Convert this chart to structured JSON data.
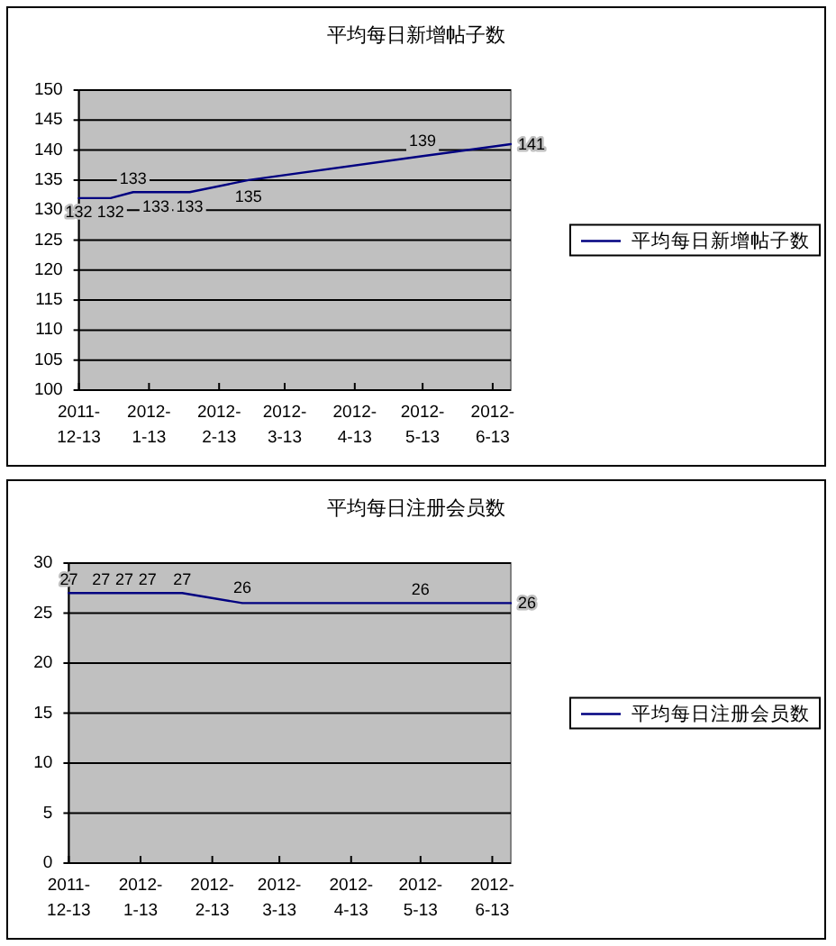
{
  "chart_data": [
    {
      "type": "line",
      "title": "平均每日新增帖子数",
      "x": [
        "2011-12-13",
        "2011-12-27",
        "2012-01-06",
        "2012-01-16",
        "2012-01-31",
        "2012-02-26",
        "2012-05-13",
        "2012-06-21"
      ],
      "series": [
        {
          "name": "平均每日新增帖子数",
          "color": "#000080",
          "values": [
            132,
            132,
            133,
            133,
            133,
            135,
            139,
            141
          ]
        }
      ],
      "xlim": [
        "2011-12-13",
        "2012-06-21"
      ],
      "xticks": [
        "2011-12-13",
        {
          "value": "2012-01-13",
          "label": "2012-1-13"
        },
        {
          "value": "2012-02-13",
          "label": "2012-2-13"
        },
        {
          "value": "2012-03-13",
          "label": "2012-3-13"
        },
        {
          "value": "2012-04-13",
          "label": "2012-4-13"
        },
        {
          "value": "2012-05-13",
          "label": "2012-5-13"
        },
        {
          "value": "2012-06-13",
          "label": "2012-6-13"
        }
      ],
      "ylim": [
        100,
        150
      ],
      "yticks": [
        100,
        105,
        110,
        115,
        120,
        125,
        130,
        135,
        140,
        145,
        150
      ],
      "grid": "y",
      "legend": "right",
      "data_labels": true
    },
    {
      "type": "line",
      "title": "平均每日注册会员数",
      "x": [
        "2011-12-13",
        "2011-12-27",
        "2012-01-06",
        "2012-01-16",
        "2012-01-31",
        "2012-02-26",
        "2012-05-13",
        "2012-06-21"
      ],
      "series": [
        {
          "name": "平均每日注册会员数",
          "color": "#000080",
          "values": [
            27,
            27,
            27,
            27,
            27,
            26,
            26,
            26
          ]
        }
      ],
      "xlim": [
        "2011-12-13",
        "2012-06-21"
      ],
      "xticks": [
        "2011-12-13",
        {
          "value": "2012-01-13",
          "label": "2012-1-13"
        },
        {
          "value": "2012-02-13",
          "label": "2012-2-13"
        },
        {
          "value": "2012-03-13",
          "label": "2012-3-13"
        },
        {
          "value": "2012-04-13",
          "label": "2012-4-13"
        },
        {
          "value": "2012-05-13",
          "label": "2012-5-13"
        },
        {
          "value": "2012-06-13",
          "label": "2012-6-13"
        }
      ],
      "ylim": [
        0,
        30
      ],
      "yticks": [
        0,
        5,
        10,
        15,
        20,
        25,
        30
      ],
      "grid": "y",
      "legend": "right",
      "data_labels": true
    }
  ]
}
